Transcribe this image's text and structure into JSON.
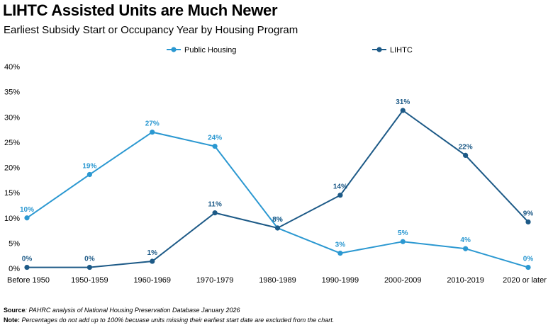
{
  "title": "LIHTC Assisted Units are Much Newer",
  "subtitle": "Earliest Subsidy Start or Occupancy Year by Housing Program",
  "footer": {
    "source_label": "Source",
    "source_text": ": PAHRC analysis of National Housing Preservation Database January 2026",
    "note_label": "Note:",
    "note_text": " Percentages do not add up to 100% becuase units missing their earliest start date are excluded from the chart."
  },
  "colors": {
    "public_housing": "#2b98d1",
    "lihtc": "#1d5a87"
  },
  "chart_data": {
    "type": "line",
    "categories": [
      "Before 1950",
      "1950-1959",
      "1960-1969",
      "1970-1979",
      "1980-1989",
      "1990-1999",
      "2000-2009",
      "2010-2019",
      "2020 or later"
    ],
    "ylim": [
      0,
      40
    ],
    "yticks": [
      "0%",
      "5%",
      "10%",
      "15%",
      "20%",
      "25%",
      "30%",
      "35%",
      "40%"
    ],
    "legend_position": "top",
    "grid": false,
    "series": [
      {
        "name": "Public Housing",
        "values": [
          10,
          18.6,
          27,
          24.2,
          8,
          3,
          5.3,
          3.9,
          0.2
        ],
        "labels": [
          "10%",
          "19%",
          "27%",
          "24%",
          "8%",
          "3%",
          "5%",
          "4%",
          "0%"
        ]
      },
      {
        "name": "LIHTC",
        "values": [
          0.2,
          0.2,
          1.4,
          11,
          8,
          14.5,
          31.3,
          22.4,
          9.2
        ],
        "labels": [
          "0%",
          "0%",
          "1%",
          "11%",
          "8%",
          "14%",
          "31%",
          "22%",
          "9%"
        ]
      }
    ]
  }
}
